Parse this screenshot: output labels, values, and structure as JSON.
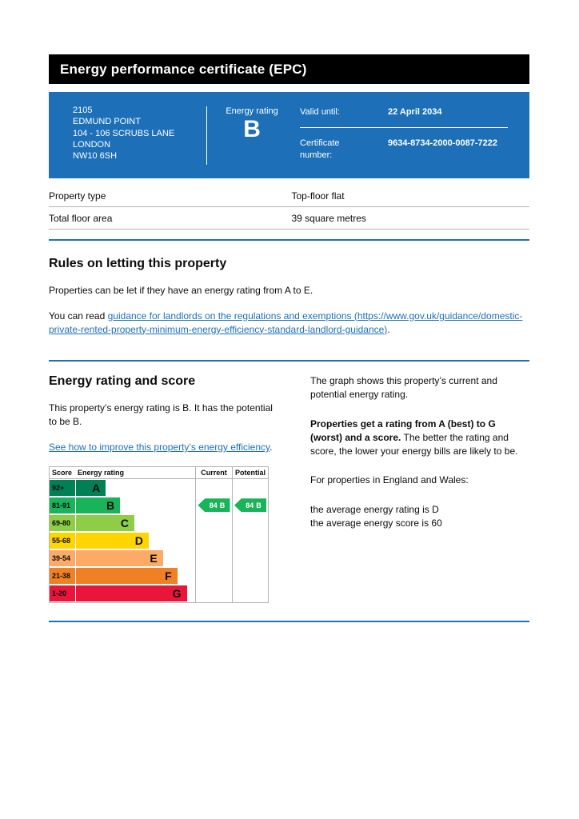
{
  "page": {
    "title": "Energy performance certificate (EPC)"
  },
  "summary_box": {
    "address_lines": [
      "2105",
      "EDMUND POINT",
      "104 - 106 SCRUBS LANE",
      "LONDON",
      "NW10 6SH"
    ],
    "energy_rating_label": "Energy rating",
    "energy_rating_letter": "B",
    "valid_until_label": "Valid until:",
    "valid_until_value": "22 April 2034",
    "certificate_number_label": "Certificate number:",
    "certificate_number_value": "9634-8734-2000-0087-7222"
  },
  "property_details": {
    "rows": [
      {
        "label": "Property type",
        "value": "Top-floor flat"
      },
      {
        "label": "Total floor area",
        "value": "39 square metres"
      }
    ]
  },
  "rules": {
    "heading": "Rules on letting this property",
    "paragraph": "Properties can be let if they have an energy rating from A to E.",
    "read_prefix": "You can read ",
    "link_text": "guidance for landlords on the regulations and exemptions (https://www.gov.uk/guidance/domestic-private-rented-property-minimum-energy-efficiency-standard-landlord-guidance)",
    "read_suffix": "."
  },
  "rating_score": {
    "heading": "Energy rating and score",
    "intro": "This property’s energy rating is B. It has the potential to be B.",
    "improve_link": "See how to improve this property’s energy efficiency",
    "improve_suffix": ".",
    "graph_intro": "The graph shows this property’s current and potential energy rating.",
    "explain_bold": "Properties get a rating from A (best) to G (worst) and a score.",
    "explain_rest": " The better the rating and score, the lower your energy bills are likely to be.",
    "england_wales": "For properties in England and Wales:",
    "average_rating": "the average energy rating is D",
    "average_score": "the average energy score is 60"
  },
  "chart_data": {
    "type": "bar",
    "subtype": "epc-rating-bands",
    "headers": {
      "score": "Score",
      "rating": "Energy rating",
      "current": "Current",
      "potential": "Potential"
    },
    "bands": [
      {
        "score": "92+",
        "letter": "A",
        "color": "#008054",
        "width_pct": 25
      },
      {
        "score": "81-91",
        "letter": "B",
        "color": "#19b459",
        "width_pct": 37
      },
      {
        "score": "69-80",
        "letter": "C",
        "color": "#8dce46",
        "width_pct": 49
      },
      {
        "score": "55-68",
        "letter": "D",
        "color": "#ffd500",
        "width_pct": 61
      },
      {
        "score": "39-54",
        "letter": "E",
        "color": "#fcaa65",
        "width_pct": 73
      },
      {
        "score": "21-38",
        "letter": "F",
        "color": "#ef8023",
        "width_pct": 85
      },
      {
        "score": "1-20",
        "letter": "G",
        "color": "#e9153b",
        "width_pct": 93
      }
    ],
    "current": {
      "score": 84,
      "letter": "B",
      "band": "B",
      "color": "#19b459"
    },
    "potential": {
      "score": 84,
      "letter": "B",
      "band": "B",
      "color": "#19b459"
    }
  },
  "colors": {
    "govuk_blue": "#1d70b8",
    "banner_black": "#000000",
    "border_grey": "#b1b4b6",
    "text_black": "#0b0c0c"
  }
}
